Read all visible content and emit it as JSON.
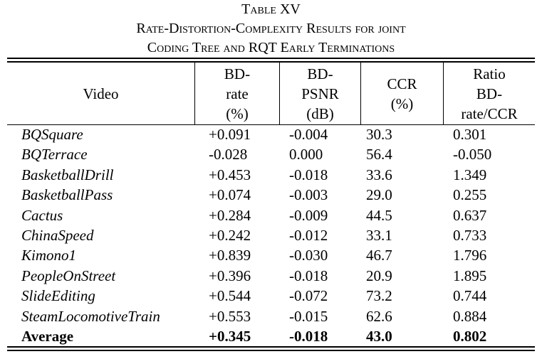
{
  "caption": {
    "line1": "Table XV",
    "line2": "Rate-Distortion-Complexity Results for joint",
    "line3": "Coding Tree and RQT Early Terminations"
  },
  "columns": {
    "video": [
      "Video"
    ],
    "bd_rate": [
      "BD-",
      "rate",
      "(%)"
    ],
    "bd_psnr": [
      "BD-",
      "PSNR",
      "(dB)"
    ],
    "ccr": [
      "CCR",
      "(%)"
    ],
    "ratio": [
      "Ratio",
      "BD-",
      "rate/CCR"
    ]
  },
  "rows": [
    {
      "video": "BQSquare",
      "bd_rate": "+0.091",
      "bd_psnr": "-0.004",
      "ccr": "30.3",
      "ratio": "0.301"
    },
    {
      "video": "BQTerrace",
      "bd_rate": "-0.028",
      "bd_psnr": "0.000",
      "ccr": "56.4",
      "ratio": "-0.050"
    },
    {
      "video": "BasketballDrill",
      "bd_rate": "+0.453",
      "bd_psnr": "-0.018",
      "ccr": "33.6",
      "ratio": "1.349"
    },
    {
      "video": "BasketballPass",
      "bd_rate": "+0.074",
      "bd_psnr": "-0.003",
      "ccr": "29.0",
      "ratio": "0.255"
    },
    {
      "video": "Cactus",
      "bd_rate": "+0.284",
      "bd_psnr": "-0.009",
      "ccr": "44.5",
      "ratio": "0.637"
    },
    {
      "video": "ChinaSpeed",
      "bd_rate": "+0.242",
      "bd_psnr": "-0.012",
      "ccr": "33.1",
      "ratio": "0.733"
    },
    {
      "video": "Kimono1",
      "bd_rate": "+0.839",
      "bd_psnr": "-0.030",
      "ccr": "46.7",
      "ratio": "1.796"
    },
    {
      "video": "PeopleOnStreet",
      "bd_rate": "+0.396",
      "bd_psnr": "-0.018",
      "ccr": "20.9",
      "ratio": "1.895"
    },
    {
      "video": "SlideEditing",
      "bd_rate": "+0.544",
      "bd_psnr": "-0.072",
      "ccr": "73.2",
      "ratio": "0.744"
    },
    {
      "video": "SteamLocomotiveTrain",
      "bd_rate": "+0.553",
      "bd_psnr": "-0.015",
      "ccr": "62.6",
      "ratio": "0.884"
    }
  ],
  "average": {
    "video": "Average",
    "bd_rate": "+0.345",
    "bd_psnr": "-0.018",
    "ccr": "43.0",
    "ratio": "0.802"
  }
}
